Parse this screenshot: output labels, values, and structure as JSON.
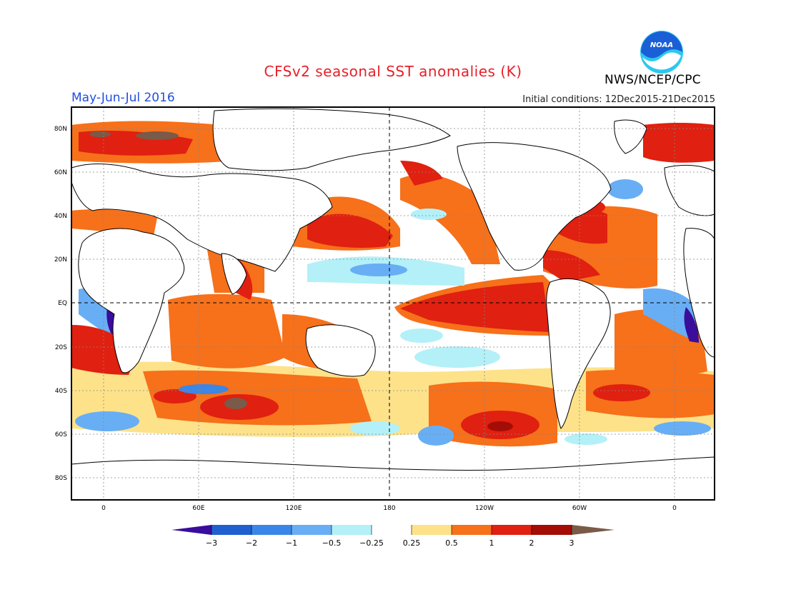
{
  "header": {
    "title": "CFSv2 seasonal SST anomalies (K)",
    "period": "May-Jun-Jul 2016",
    "initial_conditions": "Initial conditions: 12Dec2015-21Dec2015",
    "agency": "NWS/NCEP/CPC",
    "logo_text": "NOAA"
  },
  "map": {
    "lat_labels": [
      "80N",
      "60N",
      "40N",
      "20N",
      "EQ",
      "20S",
      "40S",
      "60S",
      "80S"
    ],
    "lon_labels": [
      "0",
      "60E",
      "120E",
      "180",
      "120W",
      "60W",
      "0"
    ]
  },
  "colorbar": {
    "labels": [
      "-3",
      "-2",
      "-1",
      "-0.5",
      "-0.25",
      "0.25",
      "0.5",
      "1",
      "2",
      "3"
    ],
    "colors": [
      "#3a0d9c",
      "#1f5fd0",
      "#3a86e8",
      "#68aef5",
      "#b4f0f8",
      "#ffffff",
      "#fde28a",
      "#f7701a",
      "#e02010",
      "#a30d05",
      "#7a5a48"
    ]
  },
  "colors": {
    "title": "#e8202a",
    "period": "#1f4fe0",
    "noaa_blue": "#1a5fd6",
    "noaa_cyan": "#2bc8f0"
  }
}
